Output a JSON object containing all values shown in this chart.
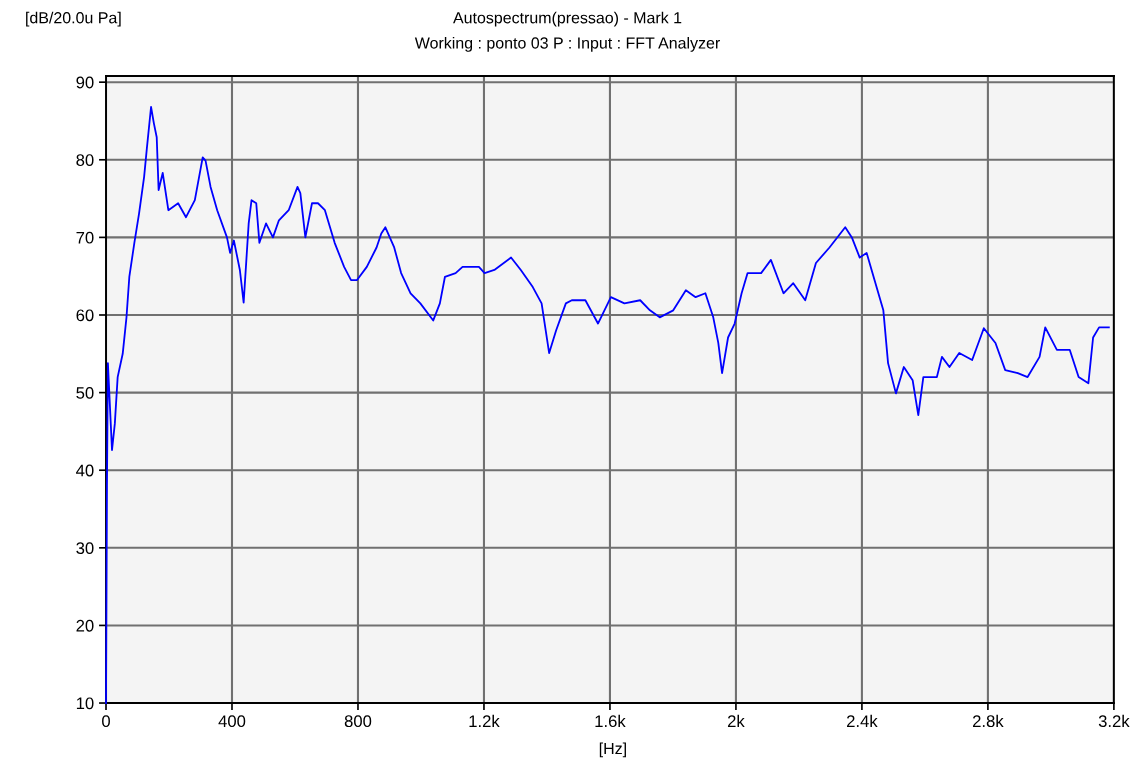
{
  "chart_data": {
    "type": "line",
    "title": "Autospectrum(pressao) - Mark 1",
    "subtitle": "Working : ponto 03 P : Input : FFT Analyzer",
    "xlabel": "[Hz]",
    "ylabel": "[dB/20.0u Pa]",
    "x": [
      0,
      3,
      6,
      19,
      28,
      37,
      53,
      65,
      74,
      90,
      105,
      121,
      130,
      143,
      152,
      161,
      167,
      180,
      198,
      229,
      254,
      282,
      307,
      316,
      332,
      353,
      384,
      394,
      406,
      425,
      437,
      453,
      462,
      477,
      487,
      508,
      530,
      549,
      580,
      608,
      617,
      633,
      654,
      673,
      695,
      726,
      756,
      778,
      797,
      828,
      859,
      874,
      887,
      915,
      937,
      967,
      998,
      1039,
      1060,
      1076,
      1110,
      1132,
      1184,
      1202,
      1233,
      1286,
      1317,
      1355,
      1383,
      1407,
      1429,
      1460,
      1479,
      1522,
      1562,
      1603,
      1646,
      1696,
      1727,
      1758,
      1801,
      1841,
      1872,
      1903,
      1928,
      1944,
      1956,
      1975,
      1996,
      2018,
      2037,
      2080,
      2111,
      2151,
      2182,
      2220,
      2254,
      2297,
      2347,
      2368,
      2393,
      2415,
      2440,
      2468,
      2483,
      2508,
      2533,
      2561,
      2579,
      2595,
      2638,
      2654,
      2678,
      2709,
      2750,
      2787,
      2824,
      2855,
      2895,
      2926,
      2964,
      2982,
      3019,
      3060,
      3088,
      3119,
      3134,
      3153,
      3184
    ],
    "series": [
      {
        "color": "#0000ff",
        "values": [
          10,
          38,
          53.8,
          42.6,
          46,
          52,
          55,
          59.7,
          64.9,
          69.3,
          73.1,
          77.8,
          81.6,
          86.8,
          84.7,
          82.9,
          76.1,
          78.3,
          73.5,
          74.4,
          72.6,
          74.8,
          80.3,
          79.9,
          76.5,
          73.5,
          70,
          68,
          69.6,
          65.8,
          61.6,
          71.8,
          74.8,
          74.4,
          69.3,
          71.8,
          70,
          72.2,
          73.5,
          76.5,
          75.7,
          70,
          74.4,
          74.4,
          73.5,
          69.3,
          66.2,
          64.5,
          64.5,
          66.2,
          68.7,
          70.5,
          71.3,
          68.7,
          65.4,
          62.8,
          61.5,
          59.3,
          61.5,
          64.9,
          65.4,
          66.2,
          66.2,
          65.4,
          65.8,
          67.4,
          65.8,
          63.6,
          61.5,
          55.1,
          58,
          61.5,
          61.9,
          61.9,
          58.9,
          62.3,
          61.5,
          61.9,
          60.6,
          59.7,
          60.6,
          63.2,
          62.3,
          62.8,
          59.7,
          56.4,
          52.5,
          57.1,
          58.9,
          62.8,
          65.4,
          65.4,
          67.1,
          62.8,
          64.1,
          61.9,
          66.7,
          68.7,
          71.3,
          70,
          67.4,
          68,
          64.5,
          60.6,
          53.8,
          49.9,
          53.3,
          51.6,
          47.1,
          52,
          52,
          54.6,
          53.3,
          55.1,
          54.2,
          58.3,
          56.4,
          52.9,
          52.5,
          52,
          54.6,
          58.4,
          55.5,
          55.5,
          52,
          51.2,
          57.1,
          58.4,
          58.4
        ]
      }
    ],
    "xlim": [
      0,
      3200
    ],
    "ylim": [
      10,
      90.8
    ],
    "xticks": [
      0,
      400,
      800,
      {
        "value": 1200,
        "label": "1.2k"
      },
      {
        "value": 1600,
        "label": "1.6k"
      },
      {
        "value": 2000,
        "label": "2k"
      },
      {
        "value": 2400,
        "label": "2.4k"
      },
      {
        "value": 2800,
        "label": "2.8k"
      },
      {
        "value": 3200,
        "label": "3.2k"
      }
    ],
    "yticks": [
      10,
      20,
      30,
      40,
      50,
      60,
      70,
      80,
      90
    ],
    "grid": true,
    "legend": false
  }
}
